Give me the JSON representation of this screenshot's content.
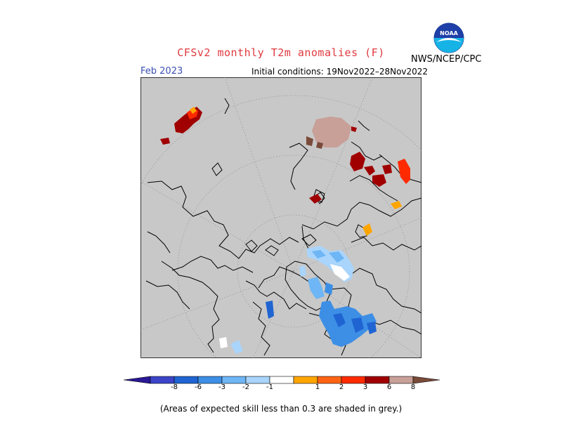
{
  "header": {
    "title": "CFSv2 monthly T2m anomalies (F)",
    "agency": "NWS/NCEP/CPC",
    "logo_text": "NOAA",
    "month": "Feb 2023",
    "initial_conditions": "Initial conditions: 19Nov2022–28Nov2022"
  },
  "colors": {
    "land_masked": "#c8c8c8",
    "coast": "#000000",
    "grid": "#9a9a9a"
  },
  "legend": {
    "bins": [
      {
        "color": "#2a1896"
      },
      {
        "color": "#3c45c8"
      },
      {
        "color": "#1f64d2"
      },
      {
        "color": "#3d8fe6"
      },
      {
        "color": "#6eb6f5"
      },
      {
        "color": "#a9d4fb"
      },
      {
        "color": "#ffffff"
      },
      {
        "color": "#ffa500"
      },
      {
        "color": "#ff6414"
      },
      {
        "color": "#ff2a00"
      },
      {
        "color": "#a00000"
      },
      {
        "color": "#c8a098"
      },
      {
        "color": "#7a4b3a"
      }
    ],
    "labels": [
      "-8",
      "-6",
      "-3",
      "-2",
      "-1",
      "1",
      "2",
      "3",
      "6",
      "8"
    ]
  },
  "footnote": "(Areas of expected skill less than 0.3 are shaded in grey.)"
}
